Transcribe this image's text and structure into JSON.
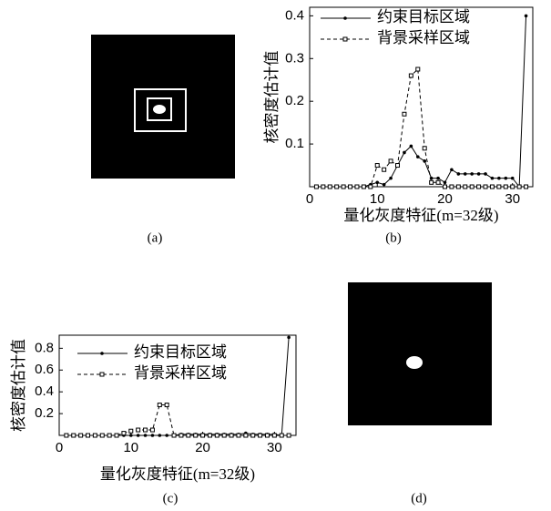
{
  "captions": [
    "(a)",
    "(b)",
    "(c)",
    "(d)"
  ],
  "chart_data": [
    {
      "type": "line",
      "xlabel": "量化灰度特征(m=32级)",
      "ylabel": "核密度估计值",
      "x": [
        1,
        2,
        3,
        4,
        5,
        6,
        7,
        8,
        9,
        10,
        11,
        12,
        13,
        14,
        15,
        16,
        17,
        18,
        19,
        20,
        21,
        22,
        23,
        24,
        25,
        26,
        27,
        28,
        29,
        30,
        31,
        32
      ],
      "series": [
        {
          "name": "约束目标区域",
          "color": "#000000",
          "values": [
            0,
            0,
            0,
            0,
            0,
            0,
            0,
            0,
            0.005,
            0.01,
            0.005,
            0.02,
            0.05,
            0.08,
            0.095,
            0.07,
            0.06,
            0.02,
            0.02,
            0.01,
            0.04,
            0.03,
            0.03,
            0.03,
            0.03,
            0.03,
            0.02,
            0.02,
            0.02,
            0.02,
            0,
            0.4
          ]
        },
        {
          "name": "背景采样区域",
          "color": "#000000",
          "values": [
            0,
            0,
            0,
            0,
            0,
            0,
            0,
            0,
            0,
            0.05,
            0.04,
            0.06,
            0.05,
            0.17,
            0.26,
            0.275,
            0.09,
            0.01,
            0.01,
            0,
            0,
            0,
            0,
            0,
            0,
            0,
            0,
            0,
            0,
            0,
            0,
            0
          ]
        }
      ],
      "xlim": [
        0,
        33
      ],
      "xticks": [
        0,
        10,
        20,
        30
      ],
      "ylim": [
        0,
        0.42
      ],
      "yticks": [
        0.1,
        0.2,
        0.3,
        0.4
      ]
    },
    {
      "type": "line",
      "xlabel": "量化灰度特征(m=32级)",
      "ylabel": "核密度估计值",
      "x": [
        1,
        2,
        3,
        4,
        5,
        6,
        7,
        8,
        9,
        10,
        11,
        12,
        13,
        14,
        15,
        16,
        17,
        18,
        19,
        20,
        21,
        22,
        23,
        24,
        25,
        26,
        27,
        28,
        29,
        30,
        31,
        32
      ],
      "series": [
        {
          "name": "约束目标区域",
          "color": "#000000",
          "values": [
            0,
            0,
            0,
            0,
            0,
            0,
            0,
            0,
            0,
            0,
            0,
            0,
            0,
            0,
            0,
            0,
            0.01,
            0.01,
            0.01,
            0.01,
            0.01,
            0.01,
            0.01,
            0.01,
            0.01,
            0.02,
            0.01,
            0.01,
            0.01,
            0.01,
            0,
            0.9
          ]
        },
        {
          "name": "背景采样区域",
          "color": "#000000",
          "values": [
            0,
            0,
            0,
            0,
            0,
            0,
            0,
            0,
            0.02,
            0.04,
            0.05,
            0.05,
            0.05,
            0.28,
            0.28,
            0,
            0,
            0,
            0,
            0,
            0,
            0,
            0,
            0,
            0,
            0,
            0,
            0,
            0,
            0,
            0,
            0
          ]
        }
      ],
      "xlim": [
        0,
        33
      ],
      "xticks": [
        0,
        10,
        20,
        30
      ],
      "ylim": [
        0,
        0.92
      ],
      "yticks": [
        0.2,
        0.4,
        0.6,
        0.8
      ]
    }
  ]
}
